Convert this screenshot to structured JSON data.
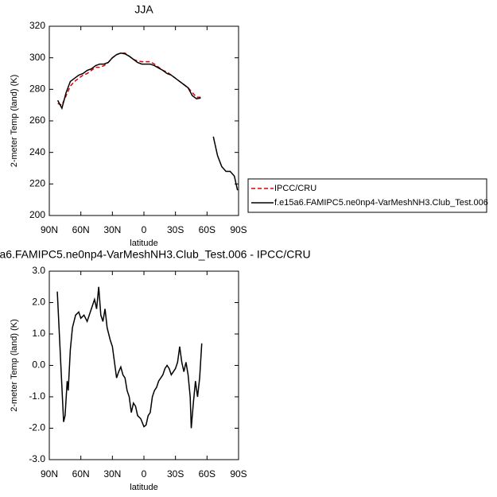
{
  "chart_data": [
    {
      "type": "line",
      "title": "JJA",
      "x_label": "latitude",
      "y_label": "2-meter Temp (land) (K)",
      "x": [
        82,
        78,
        74,
        70,
        66,
        62,
        58,
        54,
        50,
        46,
        42,
        38,
        34,
        30,
        26,
        22,
        18,
        14,
        10,
        6,
        2,
        -2,
        -6,
        -10,
        -14,
        -18,
        -22,
        -26,
        -30,
        -34,
        -38,
        -42,
        -46,
        -50,
        -54,
        -58,
        -62,
        -66,
        -70,
        -74,
        -78,
        -82,
        -86,
        -89
      ],
      "series": [
        {
          "name": "IPCC/CRU",
          "color": "#e00000",
          "style": "dashed",
          "values": [
            271,
            270,
            276,
            282,
            285,
            287,
            289,
            290,
            292,
            294,
            294,
            295,
            297,
            300,
            302,
            303,
            303,
            301,
            299,
            298,
            297.5,
            297.5,
            297.5,
            296,
            294,
            292,
            291,
            289,
            287,
            285,
            283,
            281,
            278,
            275,
            275,
            null,
            null,
            null,
            null,
            null,
            null,
            null,
            null,
            null
          ]
        },
        {
          "name": "f.e15a6.FAMIPC5.ne0np4-VarMeshNH3.Club_Test.006",
          "color": "#000000",
          "style": "solid",
          "values": [
            273,
            268,
            278,
            285,
            287,
            289,
            290,
            292,
            293,
            295,
            296,
            296,
            297,
            300,
            302,
            303,
            302.5,
            301,
            299,
            297,
            296,
            296,
            296,
            295,
            293.5,
            292,
            290,
            289,
            287,
            285,
            283,
            281,
            276,
            274,
            274.5,
            null,
            null,
            250,
            238,
            231,
            228,
            228,
            225,
            216
          ]
        }
      ],
      "xlim": [
        90,
        -90
      ],
      "xticks": [
        {
          "value": 90,
          "label": "90N"
        },
        {
          "value": 60,
          "label": "60N"
        },
        {
          "value": 30,
          "label": "30N"
        },
        0,
        {
          "value": -30,
          "label": "30S"
        },
        {
          "value": -60,
          "label": "60S"
        },
        {
          "value": -90,
          "label": "90S"
        }
      ],
      "ylim": [
        200,
        320
      ],
      "yticks": [
        200,
        220,
        240,
        260,
        280,
        300,
        320
      ],
      "legend": "right"
    },
    {
      "type": "line",
      "title": "a6.FAMIPC5.ne0np4-VarMeshNH3.Club_Test.006 - IPCC/CRU",
      "x_label": "latitude",
      "y_label": "2-meter Temp (land) (K)",
      "x": [
        82.4,
        76.4,
        75,
        73,
        72,
        70,
        68,
        65,
        62,
        60,
        57,
        54,
        50,
        47,
        45,
        43,
        41,
        39,
        37,
        35,
        32,
        30,
        28,
        26,
        24,
        22,
        20,
        18,
        16,
        14,
        12,
        10,
        8,
        6,
        3,
        0,
        -2,
        -4,
        -6,
        -8,
        -10,
        -12,
        -14,
        -16,
        -18,
        -20,
        -22,
        -24,
        -26,
        -28,
        -30,
        -32,
        -34,
        -36,
        -38,
        -40,
        -42,
        -44,
        -45,
        -47,
        -49,
        -51,
        -53,
        -55
      ],
      "values": [
        2.35,
        -1.8,
        -1.6,
        -0.5,
        -0.8,
        0.5,
        1.2,
        1.6,
        1.7,
        1.5,
        1.6,
        1.4,
        1.8,
        2.1,
        1.8,
        2.5,
        1.6,
        1.4,
        1.8,
        1.2,
        0.8,
        0.6,
        0.1,
        -0.4,
        -0.2,
        -0.05,
        -0.3,
        -0.4,
        -0.8,
        -1.0,
        -1.5,
        -1.2,
        -1.3,
        -1.6,
        -1.7,
        -1.95,
        -1.9,
        -1.6,
        -1.5,
        -1.0,
        -0.8,
        -0.7,
        -0.5,
        -0.4,
        -0.3,
        -0.1,
        0.0,
        -0.1,
        -0.3,
        -0.2,
        -0.1,
        0.1,
        0.6,
        0.1,
        -0.2,
        0.1,
        -0.3,
        -1.0,
        -2.0,
        -1.2,
        -0.5,
        -1.0,
        -0.4,
        0.7
      ],
      "color": "#000000",
      "xlim": [
        90,
        -90
      ],
      "xticks": [
        {
          "value": 90,
          "label": "90N"
        },
        {
          "value": 60,
          "label": "60N"
        },
        {
          "value": 30,
          "label": "30N"
        },
        0,
        {
          "value": -30,
          "label": "30S"
        },
        {
          "value": -60,
          "label": "60S"
        },
        {
          "value": -90,
          "label": "90S"
        }
      ],
      "ylim": [
        -3,
        3
      ],
      "yticks": [
        {
          "value": -3,
          "label": "-3.0"
        },
        {
          "value": -2,
          "label": "-2.0"
        },
        {
          "value": -1,
          "label": "-1.0"
        },
        {
          "value": 0,
          "label": "0.0"
        },
        {
          "value": 1,
          "label": "1.0"
        },
        {
          "value": 2,
          "label": "2.0"
        },
        {
          "value": 3,
          "label": "3.0"
        }
      ]
    }
  ]
}
